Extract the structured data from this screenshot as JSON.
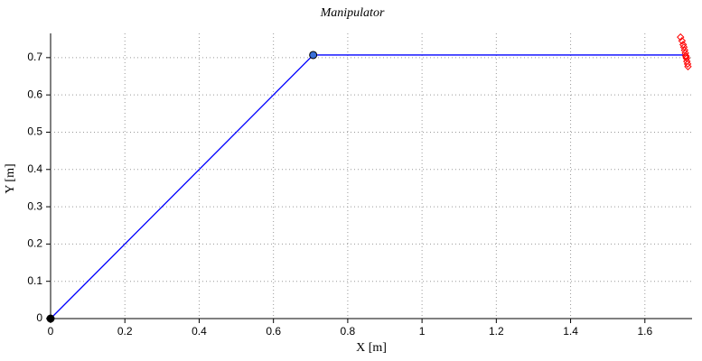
{
  "chart_data": {
    "type": "line",
    "title": "Manipulator",
    "x_label": "X [m]",
    "y_label": "Y [m]",
    "xlim": [
      0,
      1.727
    ],
    "ylim": [
      0,
      0.765
    ],
    "xticks": [
      0,
      0.2,
      0.4,
      0.6,
      0.8,
      1,
      1.2,
      1.4,
      1.6
    ],
    "yticks": [
      0,
      0.1,
      0.2,
      0.3,
      0.4,
      0.5,
      0.6,
      0.7
    ],
    "grid": true,
    "series": [
      {
        "type": "line",
        "color": "#0000ff",
        "x": [
          0,
          0.707,
          1.707
        ],
        "values": [
          0,
          0.707,
          0.707
        ]
      },
      {
        "type": "scatter",
        "marker": "circle",
        "color": "#000000",
        "x": [
          0
        ],
        "values": [
          0
        ]
      },
      {
        "type": "scatter",
        "marker": "circle",
        "color": "#3a6fd8",
        "x": [
          0.707
        ],
        "values": [
          0.707
        ]
      },
      {
        "type": "scatter",
        "marker": "diamond",
        "color": "#ff0000",
        "x": [
          1.696,
          1.7,
          1.703,
          1.705,
          1.707,
          1.709,
          1.71,
          1.711,
          1.712,
          1.713,
          1.715,
          1.716
        ],
        "values": [
          0.755,
          0.745,
          0.735,
          0.728,
          0.72,
          0.712,
          0.705,
          0.702,
          0.698,
          0.69,
          0.683,
          0.676
        ]
      }
    ]
  }
}
